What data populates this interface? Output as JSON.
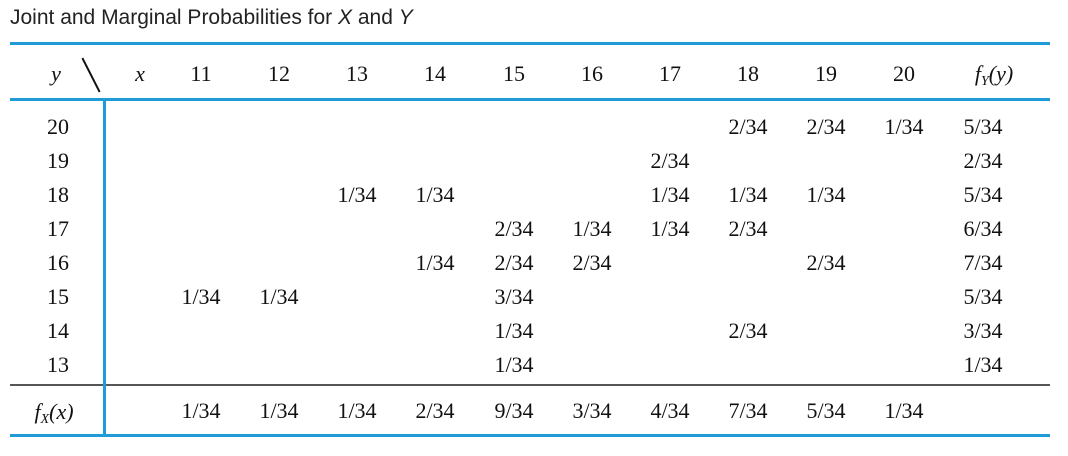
{
  "title": {
    "prefix": "Joint and Marginal Probabilities for ",
    "var_x": "X",
    "and": " and ",
    "var_y": "Y"
  },
  "header": {
    "y_var": "y",
    "x_var": "x",
    "x_values": [
      "11",
      "12",
      "13",
      "14",
      "15",
      "16",
      "17",
      "18",
      "19",
      "20"
    ],
    "fy_f": "f",
    "fy_sub": "Y",
    "fy_arg": "(y)"
  },
  "rows": [
    {
      "y": "20",
      "cells": [
        "",
        "",
        "",
        "",
        "",
        "",
        "",
        "2/34",
        "2/34",
        "1/34"
      ],
      "fy": "5/34"
    },
    {
      "y": "19",
      "cells": [
        "",
        "",
        "",
        "",
        "",
        "",
        "2/34",
        "",
        "",
        ""
      ],
      "fy": "2/34"
    },
    {
      "y": "18",
      "cells": [
        "",
        "",
        "1/34",
        "1/34",
        "",
        "",
        "1/34",
        "1/34",
        "1/34",
        ""
      ],
      "fy": "5/34"
    },
    {
      "y": "17",
      "cells": [
        "",
        "",
        "",
        "",
        "2/34",
        "1/34",
        "1/34",
        "2/34",
        "",
        ""
      ],
      "fy": "6/34"
    },
    {
      "y": "16",
      "cells": [
        "",
        "",
        "",
        "1/34",
        "2/34",
        "2/34",
        "",
        "",
        "2/34",
        ""
      ],
      "fy": "7/34"
    },
    {
      "y": "15",
      "cells": [
        "1/34",
        "1/34",
        "",
        "",
        "3/34",
        "",
        "",
        "",
        "",
        ""
      ],
      "fy": "5/34"
    },
    {
      "y": "14",
      "cells": [
        "",
        "",
        "",
        "",
        "1/34",
        "",
        "",
        "2/34",
        "",
        ""
      ],
      "fy": "3/34"
    },
    {
      "y": "13",
      "cells": [
        "",
        "",
        "",
        "",
        "1/34",
        "",
        "",
        "",
        "",
        ""
      ],
      "fy": "1/34"
    }
  ],
  "fx": {
    "f": "f",
    "sub": "X",
    "arg": "(x)",
    "values": [
      "1/34",
      "1/34",
      "1/34",
      "2/34",
      "9/34",
      "3/34",
      "4/34",
      "7/34",
      "5/34",
      "1/34"
    ]
  }
}
